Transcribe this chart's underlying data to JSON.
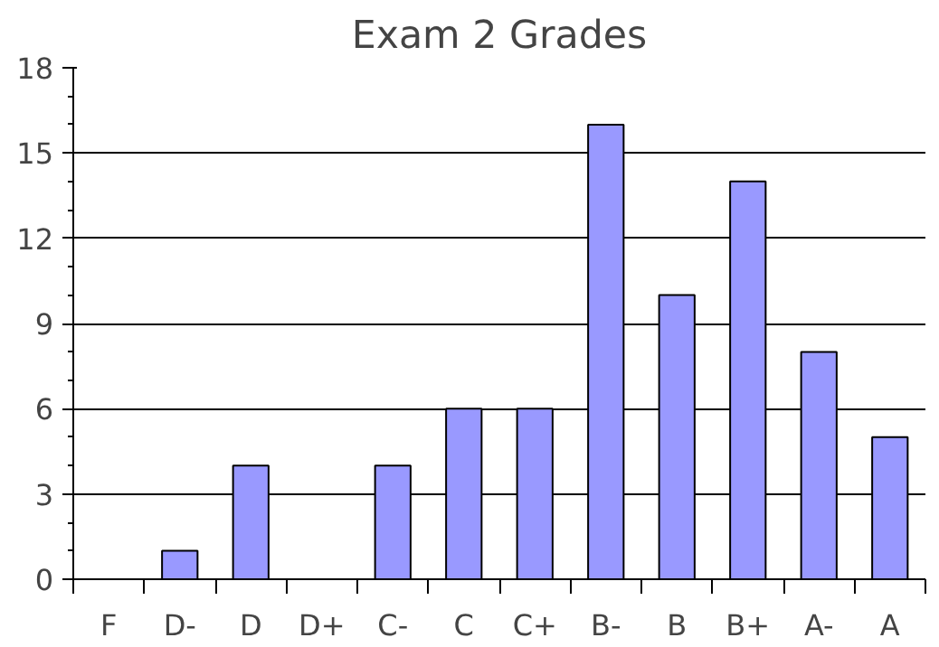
{
  "chart_data": {
    "type": "bar",
    "title": "Exam 2 Grades",
    "categories": [
      "F",
      "D-",
      "D",
      "D+",
      "C-",
      "C",
      "C+",
      "B-",
      "B",
      "B+",
      "A-",
      "A"
    ],
    "values": [
      0,
      1,
      4,
      0,
      4,
      6,
      6,
      16,
      10,
      14,
      8,
      5
    ],
    "color": "#9999ff",
    "ylim": [
      0,
      18
    ],
    "yticks": [
      0,
      3,
      6,
      9,
      12,
      15,
      18
    ],
    "grid": "y"
  }
}
